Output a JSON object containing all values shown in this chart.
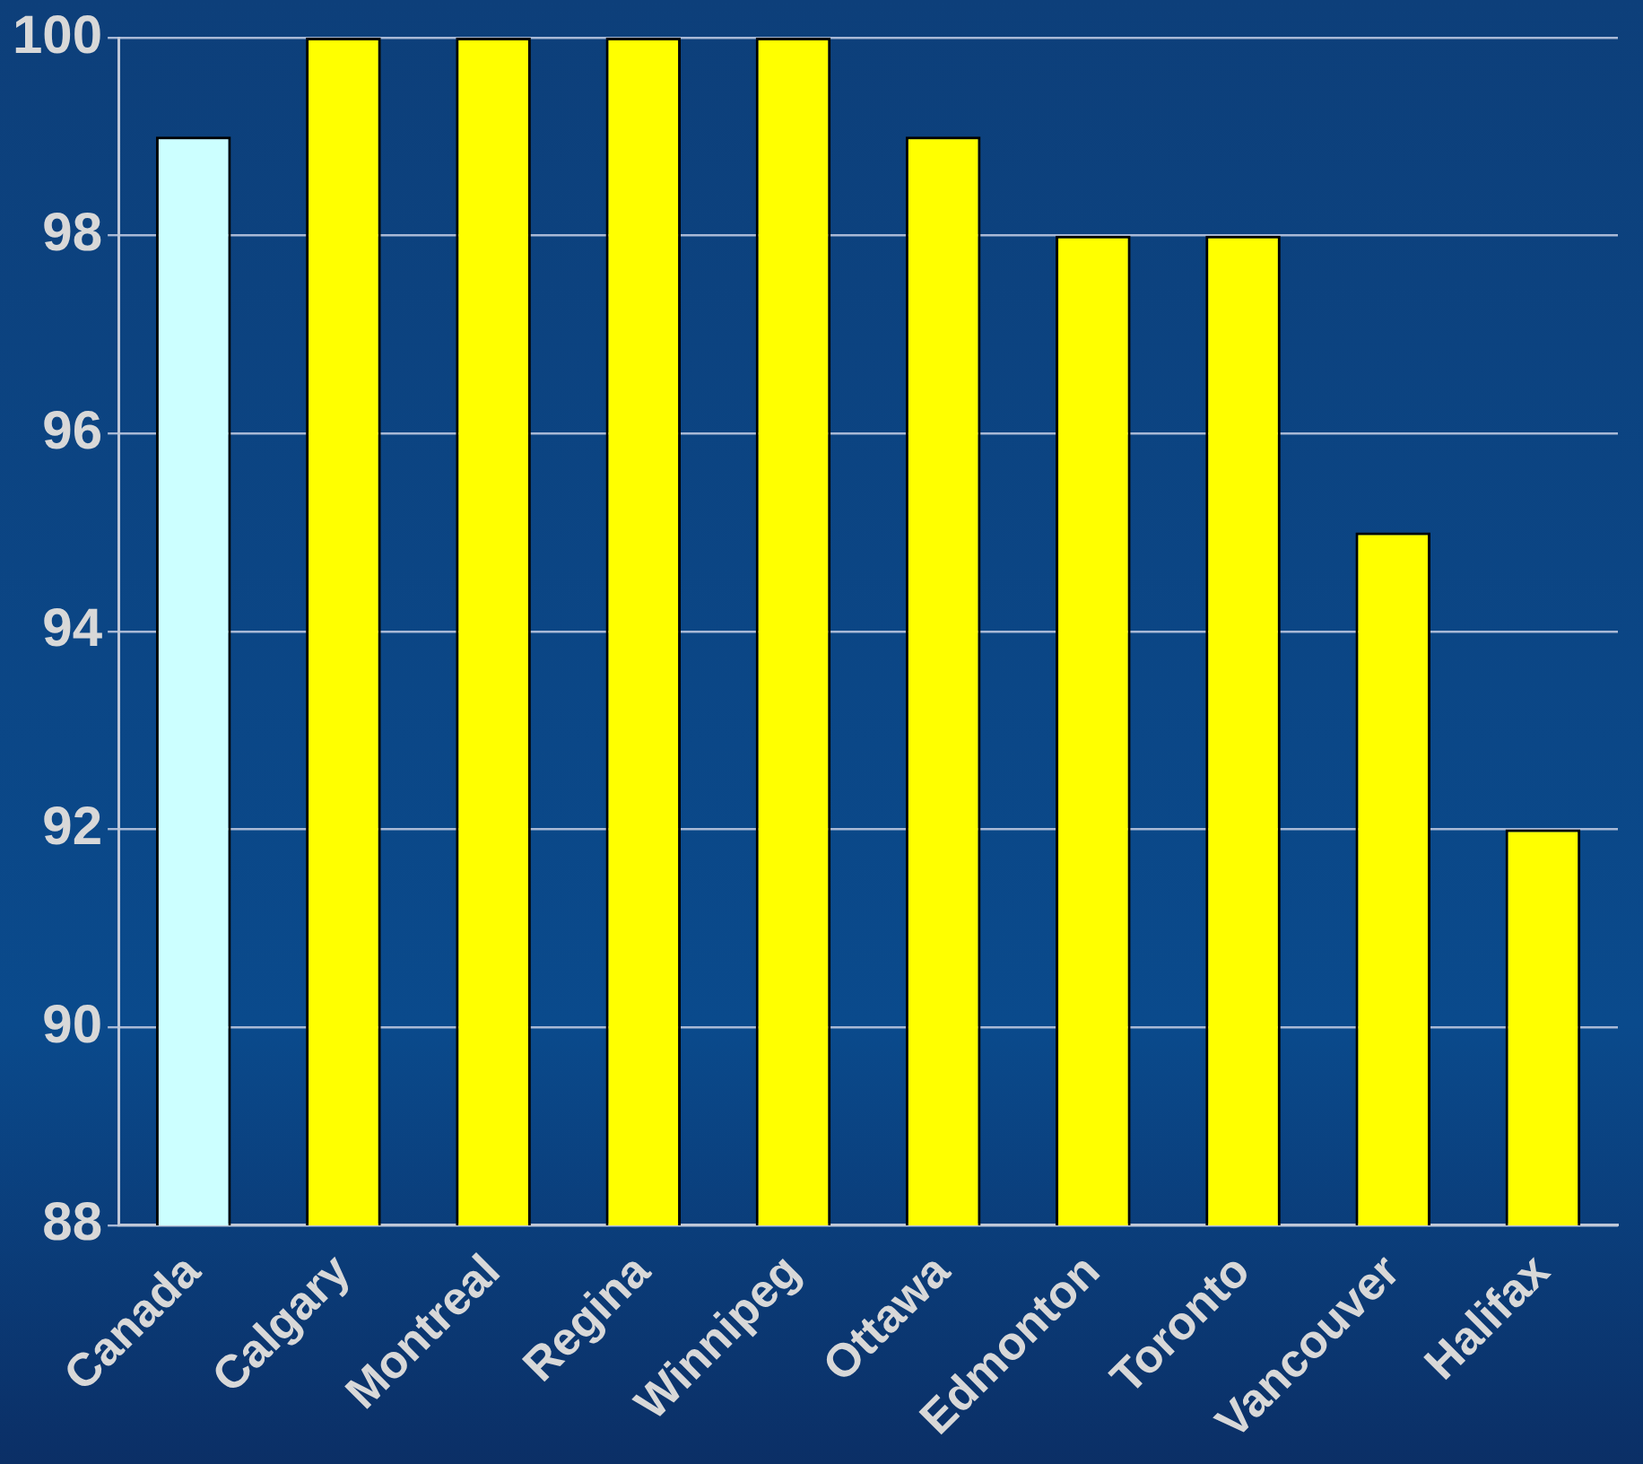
{
  "chart_data": {
    "type": "bar",
    "categories": [
      "Canada",
      "Calgary",
      "Montreal",
      "Regina",
      "Winnipeg",
      "Ottawa",
      "Edmonton",
      "Toronto",
      "Vancouver",
      "Halifax"
    ],
    "values": [
      99,
      100,
      100,
      100,
      100,
      99,
      98,
      98,
      95,
      92
    ],
    "colors": [
      "#ccffff",
      "#ffff00",
      "#ffff00",
      "#ffff00",
      "#ffff00",
      "#ffff00",
      "#ffff00",
      "#ffff00",
      "#ffff00",
      "#ffff00"
    ],
    "ylim": [
      88,
      100
    ],
    "yticks": [
      88,
      90,
      92,
      94,
      96,
      98,
      100
    ],
    "grid": "y",
    "legend": false
  }
}
